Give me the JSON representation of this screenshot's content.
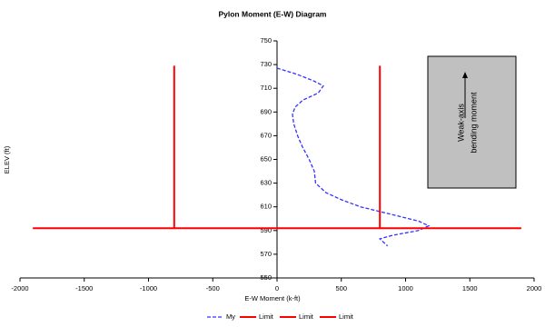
{
  "chart_data": {
    "type": "line",
    "title": "Pylon Moment (E-W) Diagram",
    "x_label": "E-W Moment (k-ft)",
    "y_label": "ELEV (ft)",
    "xlim": [
      -2000,
      2000
    ],
    "xticks": [
      -2000,
      -1500,
      -1000,
      -500,
      0,
      500,
      1000,
      1500,
      2000
    ],
    "ylim": [
      550,
      750
    ],
    "yticks": [
      550,
      570,
      590,
      610,
      630,
      650,
      670,
      690,
      710,
      730,
      750
    ],
    "annotation": [
      "Weak-axis",
      "bending moment"
    ],
    "series": [
      {
        "name": "My",
        "color": "#3333ff",
        "dashed": true,
        "x": [
          0,
          150,
          290,
          360,
          320,
          200,
          140,
          120,
          130,
          160,
          200,
          250,
          290,
          300,
          380,
          500,
          650,
          800,
          950,
          1100,
          1180,
          1100,
          900,
          800,
          830,
          860
        ],
        "values": [
          727,
          722,
          716,
          712,
          706,
          700,
          694,
          688,
          680,
          670,
          660,
          650,
          640,
          630,
          622,
          616,
          610,
          606,
          602,
          598,
          594,
          590,
          586,
          583,
          580,
          577
        ]
      },
      {
        "name": "Limit",
        "color": "#ff0000",
        "dashed": false,
        "x": [
          -800,
          -800
        ],
        "values": [
          592,
          729
        ]
      },
      {
        "name": "Limit",
        "color": "#ff0000",
        "dashed": false,
        "x": [
          800,
          800
        ],
        "values": [
          592,
          729
        ]
      },
      {
        "name": "Limit",
        "color": "#ff0000",
        "dashed": false,
        "x": [
          -1900,
          1900
        ],
        "values": [
          592,
          592
        ]
      }
    ]
  }
}
